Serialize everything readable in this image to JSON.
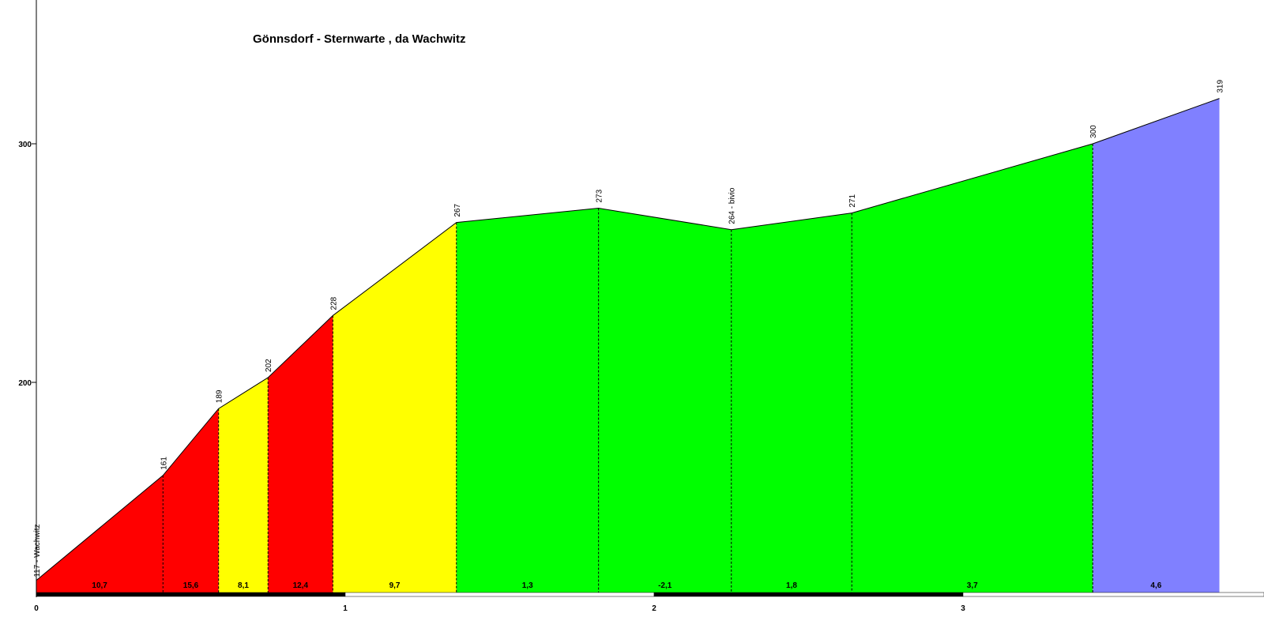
{
  "chart_data": {
    "type": "area",
    "title": "Gönnsdorf - Sternwarte , da Wachwitz",
    "xlabel": "",
    "ylabel": "",
    "x_unit": "km",
    "xlim": [
      0,
      4.1
    ],
    "ylim": [
      113,
      360
    ],
    "x_ticks": [
      0,
      1,
      2,
      3
    ],
    "x_tick_labels": [
      "0",
      "1",
      "2",
      "3"
    ],
    "y_ticks": [
      200,
      300
    ],
    "y_tick_labels": [
      "200",
      "300"
    ],
    "grid": false,
    "legend": "none",
    "points": [
      {
        "x": 0.0,
        "y": 117,
        "label": "117 - Wachwitz"
      },
      {
        "x": 0.41,
        "y": 161,
        "label": "161"
      },
      {
        "x": 0.59,
        "y": 189,
        "label": "189"
      },
      {
        "x": 0.75,
        "y": 202,
        "label": "202"
      },
      {
        "x": 0.96,
        "y": 228,
        "label": "228"
      },
      {
        "x": 1.36,
        "y": 267,
        "label": "267"
      },
      {
        "x": 1.82,
        "y": 273,
        "label": "273"
      },
      {
        "x": 2.25,
        "y": 264,
        "label": "264 - bivio"
      },
      {
        "x": 2.64,
        "y": 271,
        "label": "271"
      },
      {
        "x": 3.42,
        "y": 300,
        "label": "300"
      },
      {
        "x": 3.83,
        "y": 319,
        "label": "319"
      }
    ],
    "segments": [
      {
        "grade": "10,7",
        "color": "#ff0000"
      },
      {
        "grade": "15,6",
        "color": "#ff0000"
      },
      {
        "grade": "8,1",
        "color": "#ffff00"
      },
      {
        "grade": "12,4",
        "color": "#ff0000"
      },
      {
        "grade": "9,7",
        "color": "#ffff00"
      },
      {
        "grade": "1,3",
        "color": "#00ff00"
      },
      {
        "grade": "-2,1",
        "color": "#00ff00"
      },
      {
        "grade": "1,8",
        "color": "#00ff00"
      },
      {
        "grade": "3,7",
        "color": "#00ff00"
      },
      {
        "grade": "4,6",
        "color": "#8080ff"
      }
    ]
  }
}
